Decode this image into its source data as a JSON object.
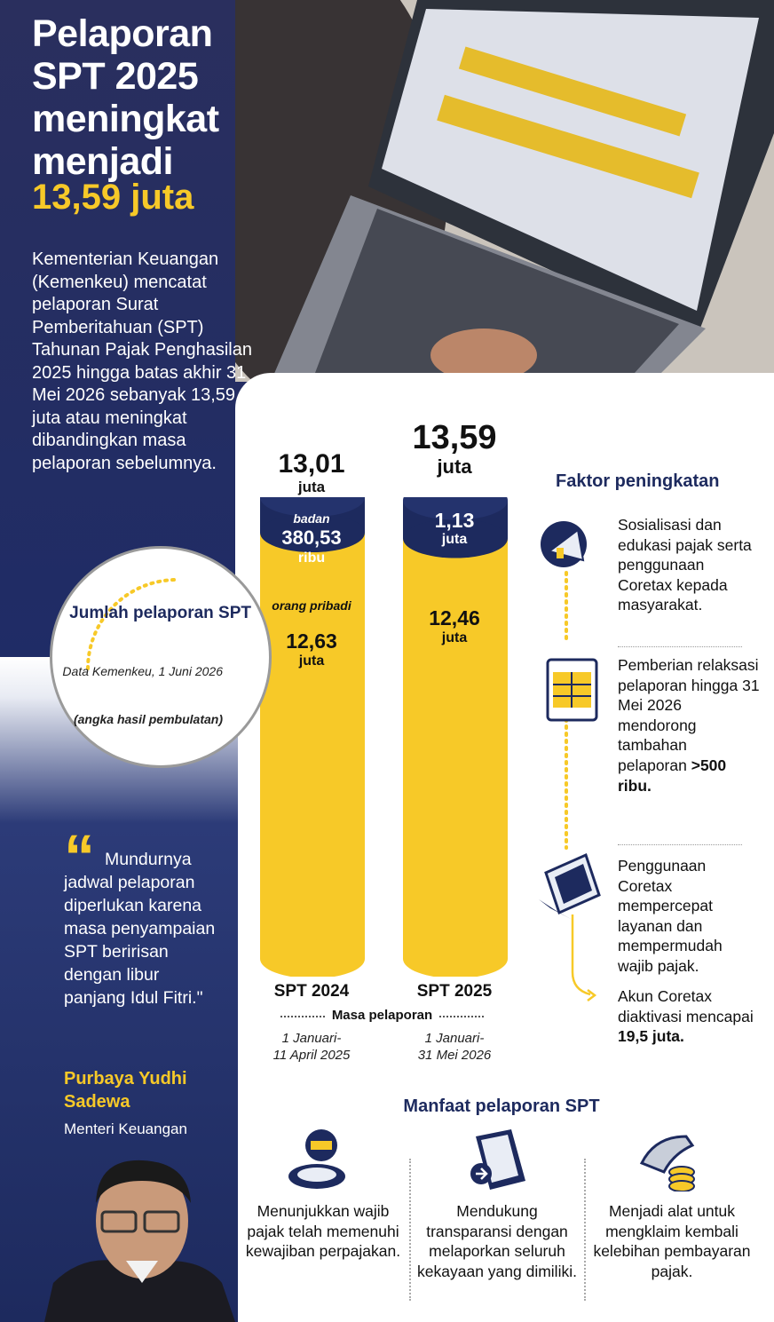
{
  "header": {
    "title": "Pelaporan SPT 2025 meningkat menjadi",
    "highlight": "13,59 juta",
    "lead": "Kementerian Keuangan (Kemenkeu) mencatat pelaporan Surat Pemberitahuan (SPT) Tahunan Pajak Penghasilan 2025 hingga batas akhir 31 Mei 2026 sebanyak 13,59 juta atau meningkat dibandingkan masa pelaporan sebelumnya."
  },
  "chart_data": {
    "type": "bar",
    "stacked": true,
    "categories": [
      "SPT 2024",
      "SPT 2025"
    ],
    "series": [
      {
        "name": "orang pribadi",
        "values": [
          12.63,
          12.46
        ]
      },
      {
        "name": "badan",
        "values": [
          0.38053,
          1.13
        ]
      }
    ],
    "series_totals": [
      "13,01",
      "13,59"
    ],
    "unit_juta": "juta",
    "unit_juta_lower": "juta",
    "label_badan": "badan",
    "label_op": "orang pribadi",
    "badan_values": [
      "380,53",
      "1,13"
    ],
    "badan_units": [
      "ribu",
      "juta"
    ],
    "op_values": [
      "12,63",
      "12,46"
    ],
    "period_caption": "Masa pelaporan",
    "periods": [
      "1 Januari-\n11 April 2025",
      "1 Januari-\n31 Mei 2026"
    ],
    "colors": {
      "orang_pribadi": "#f7c928",
      "badan": "#1d2a5e"
    }
  },
  "circle": {
    "title": "Jumlah pelaporan SPT",
    "source": "Data Kemenkeu, 1 Juni 2026",
    "note": "(angka hasil pembulatan)"
  },
  "quote": {
    "mark": "“",
    "text": "Mundurnya jadwal pelaporan diperlukan karena masa penyampaian SPT beririsan dengan libur panjang Idul Fitri.\"",
    "author": "Purbaya Yudhi Sadewa",
    "role": "Menteri Keuangan"
  },
  "factors": {
    "heading": "Faktor peningkatan",
    "items": [
      "Sosialisasi dan edukasi pajak serta penggunaan Coretax kepada masyarakat.",
      "Pemberian relaksasi pelaporan hingga 31 Mei 2026 mendorong tambahan pelaporan ",
      "Penggunaan Coretax mempercepat layanan dan mempermudah wajib pajak.",
      "Akun Coretax diaktivasi mencapai "
    ],
    "items_bold": [
      "",
      ">500 ribu.",
      "",
      "19,5 juta."
    ]
  },
  "benefits": {
    "heading": "Manfaat pelaporan SPT",
    "items": [
      "Menunjukkan wajib pajak telah memenuhi kewajiban perpajakan.",
      "Mendukung transparansi dengan melaporkan seluruh kekayaan yang dimiliki.",
      "Menjadi alat untuk mengklaim kembali kelebihan pembayaran pajak."
    ]
  }
}
